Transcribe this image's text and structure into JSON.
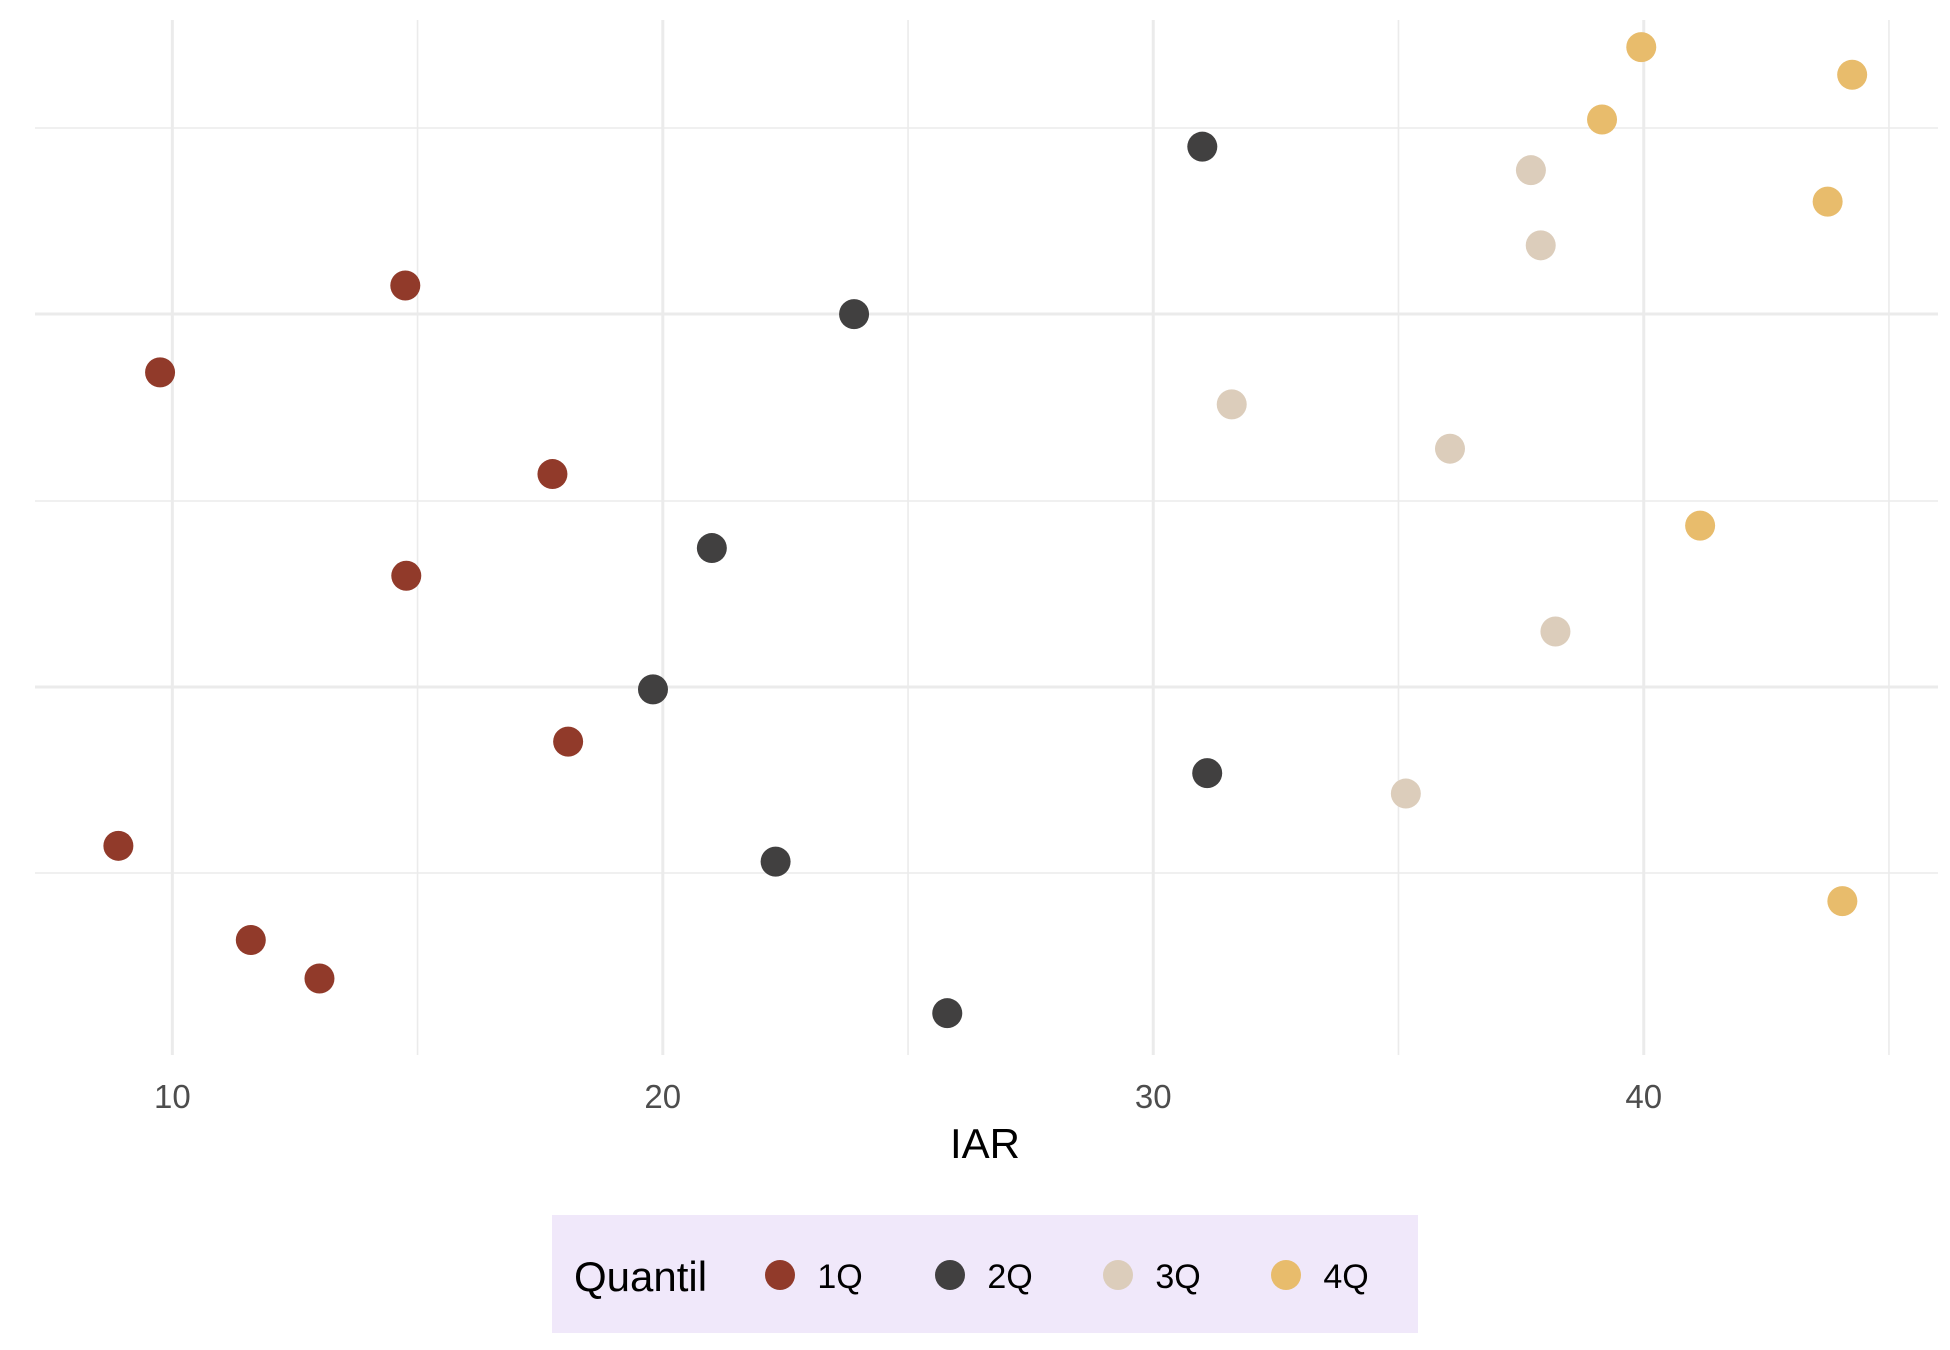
{
  "chart_data": {
    "type": "scatter",
    "title": "",
    "xlabel": "IAR",
    "ylabel": "",
    "xlim": [
      7.2,
      46.0
    ],
    "ylim": [
      0.0,
      1.0
    ],
    "x_ticks": [
      10,
      20,
      30,
      40
    ],
    "x_tick_labels": [
      "10",
      "20",
      "30",
      "40"
    ],
    "y_ticks_label_shown": false,
    "grid": true,
    "legend": {
      "title": "Quantil",
      "position": "bottom",
      "background": "#f0e8fa"
    },
    "series": [
      {
        "name": "1Q",
        "color": "#913a2a",
        "points": [
          {
            "x": 9.75,
            "y": 0.6595
          },
          {
            "x": 14.75,
            "y": 0.7435
          },
          {
            "x": 17.75,
            "y": 0.5613
          },
          {
            "x": 14.77,
            "y": 0.463
          },
          {
            "x": 18.07,
            "y": 0.3028
          },
          {
            "x": 8.9,
            "y": 0.2021
          },
          {
            "x": 11.6,
            "y": 0.1111
          },
          {
            "x": 13.0,
            "y": 0.0739
          }
        ]
      },
      {
        "name": "2Q",
        "color": "#414040",
        "points": [
          {
            "x": 31.0,
            "y": 0.8776
          },
          {
            "x": 23.9,
            "y": 0.7158
          },
          {
            "x": 21.0,
            "y": 0.4898
          },
          {
            "x": 19.8,
            "y": 0.3533
          },
          {
            "x": 31.1,
            "y": 0.2723
          },
          {
            "x": 22.3,
            "y": 0.1868
          },
          {
            "x": 25.8,
            "y": 0.0404
          }
        ]
      },
      {
        "name": "3Q",
        "color": "#dccdbb",
        "points": [
          {
            "x": 37.7,
            "y": 0.8549
          },
          {
            "x": 37.9,
            "y": 0.7823
          },
          {
            "x": 31.6,
            "y": 0.6286
          },
          {
            "x": 36.05,
            "y": 0.5858
          },
          {
            "x": 38.2,
            "y": 0.4092
          },
          {
            "x": 35.15,
            "y": 0.2526
          }
        ]
      },
      {
        "name": "4Q",
        "color": "#e8bc6c",
        "points": [
          {
            "x": 39.95,
            "y": 0.9738
          },
          {
            "x": 44.25,
            "y": 0.9471
          },
          {
            "x": 39.15,
            "y": 0.9039
          },
          {
            "x": 43.75,
            "y": 0.8245
          },
          {
            "x": 41.15,
            "y": 0.5115
          },
          {
            "x": 44.05,
            "y": 0.1487
          }
        ]
      }
    ]
  }
}
